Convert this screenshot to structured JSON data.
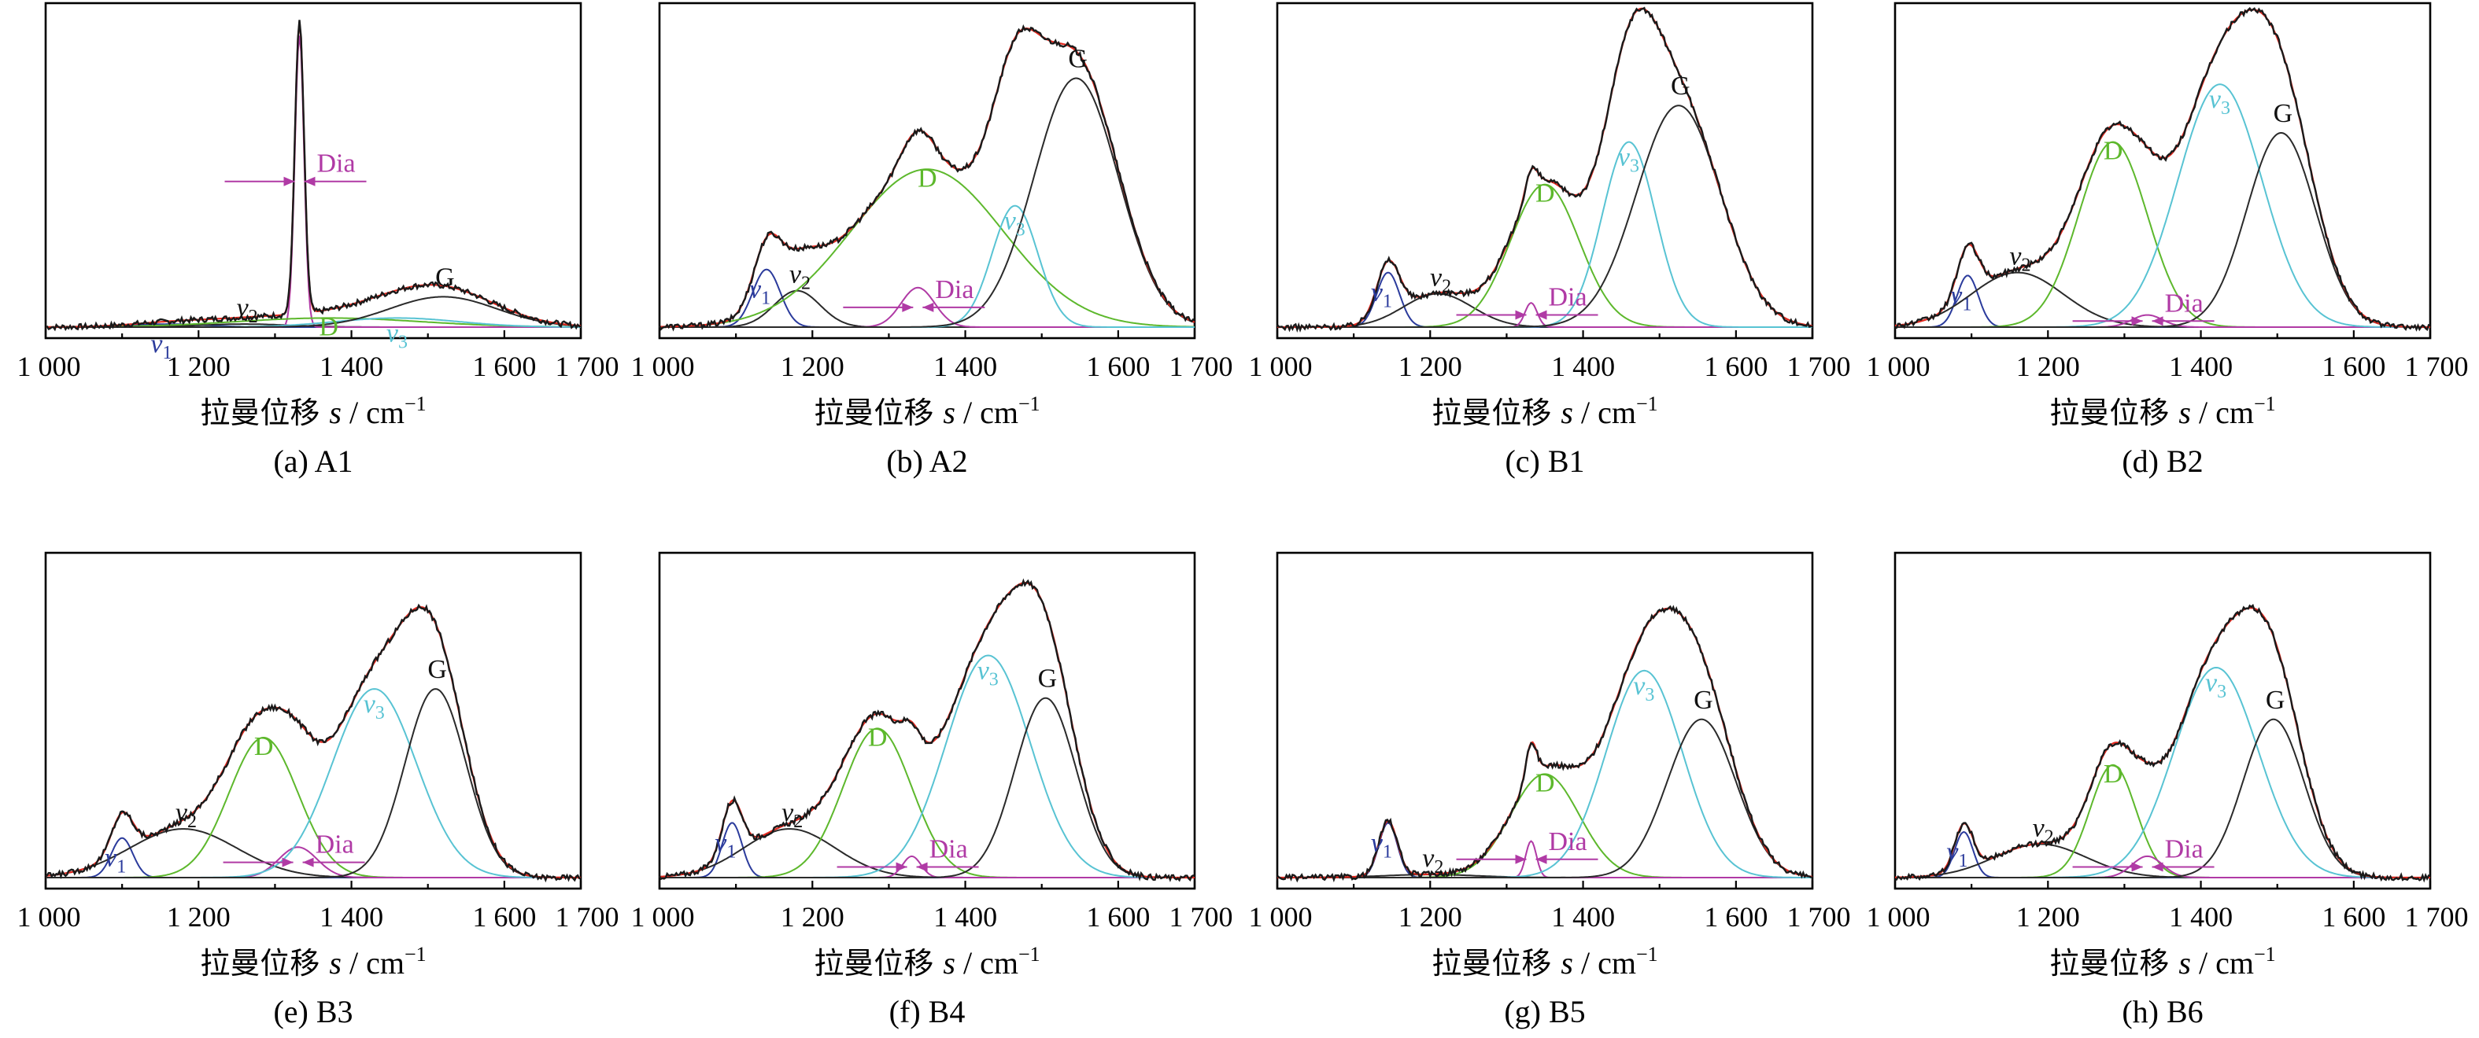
{
  "figure": {
    "xlabel_text": "拉曼位移",
    "xlabel_var": "s",
    "xlabel_unit": " / cm",
    "xlabel_exp": "−1",
    "xticks": [
      1000,
      1200,
      1400,
      1600,
      1700
    ],
    "xtick_labels": [
      "1 000",
      "1 200",
      "1 400",
      "1 600",
      "1 700"
    ],
    "xlim": [
      1000,
      1700
    ],
    "colors": {
      "raw": "#1a1a1a",
      "fit": "#e3281e",
      "v1": "#2b3b9c",
      "v2": "#2a2a2a",
      "D": "#5db82c",
      "Dia": "#b03aa5",
      "v3": "#58c3d3",
      "G": "#2a2a2a",
      "baseline": "#3a3aa8"
    }
  },
  "chart_data": [
    {
      "type": "line",
      "panel": "A1",
      "caption": "(a) A1",
      "xlim": [
        1000,
        1700
      ],
      "bands": [
        {
          "name": "v1",
          "center": 1160,
          "height": 0.01,
          "width": 50
        },
        {
          "name": "v2",
          "center": 1260,
          "height": 0.01,
          "width": 60
        },
        {
          "name": "Dia",
          "center": 1332,
          "height": 0.96,
          "width": 6
        },
        {
          "name": "D",
          "center": 1370,
          "height": 0.03,
          "width": 120
        },
        {
          "name": "v3",
          "center": 1460,
          "height": 0.03,
          "width": 80
        },
        {
          "name": "G",
          "center": 1520,
          "height": 0.1,
          "width": 70
        }
      ],
      "labels": {
        "Dia": "Dia",
        "G": "G",
        "D": "D",
        "v1": "v",
        "v1_sub": "1",
        "v2": "v",
        "v2_sub": "2",
        "v3": "v",
        "v3_sub": "3"
      }
    },
    {
      "type": "line",
      "panel": "A2",
      "caption": "(b) A2",
      "xlim": [
        1000,
        1700
      ],
      "bands": [
        {
          "name": "v1",
          "center": 1140,
          "height": 0.19,
          "width": 18
        },
        {
          "name": "v2",
          "center": 1180,
          "height": 0.12,
          "width": 30
        },
        {
          "name": "D",
          "center": 1350,
          "height": 0.52,
          "width": 100
        },
        {
          "name": "Dia",
          "center": 1338,
          "height": 0.13,
          "width": 22
        },
        {
          "name": "v3",
          "center": 1465,
          "height": 0.4,
          "width": 30
        },
        {
          "name": "G",
          "center": 1545,
          "height": 0.82,
          "width": 55
        }
      ],
      "labels": {
        "Dia": "Dia",
        "G": "G",
        "D": "D",
        "v1": "v",
        "v1_sub": "1",
        "v2": "v",
        "v2_sub": "2",
        "v3": "v",
        "v3_sub": "3"
      }
    },
    {
      "type": "line",
      "panel": "B1",
      "caption": "(c) B1",
      "xlim": [
        1000,
        1700
      ],
      "bands": [
        {
          "name": "v1",
          "center": 1145,
          "height": 0.18,
          "width": 15
        },
        {
          "name": "v2",
          "center": 1210,
          "height": 0.11,
          "width": 45
        },
        {
          "name": "D",
          "center": 1350,
          "height": 0.47,
          "width": 45
        },
        {
          "name": "Dia",
          "center": 1332,
          "height": 0.08,
          "width": 8
        },
        {
          "name": "v3",
          "center": 1460,
          "height": 0.61,
          "width": 35
        },
        {
          "name": "G",
          "center": 1525,
          "height": 0.73,
          "width": 55
        }
      ],
      "labels": {
        "Dia": "Dia",
        "G": "G",
        "D": "D",
        "v1": "v",
        "v1_sub": "1",
        "v2": "v",
        "v2_sub": "2",
        "v3": "v",
        "v3_sub": "3"
      }
    },
    {
      "type": "line",
      "panel": "B2",
      "caption": "(d) B2",
      "xlim": [
        1000,
        1700
      ],
      "bands": [
        {
          "name": "v1",
          "center": 1095,
          "height": 0.17,
          "width": 14
        },
        {
          "name": "v2",
          "center": 1160,
          "height": 0.18,
          "width": 60
        },
        {
          "name": "D",
          "center": 1285,
          "height": 0.61,
          "width": 45
        },
        {
          "name": "Dia",
          "center": 1330,
          "height": 0.04,
          "width": 20
        },
        {
          "name": "v3",
          "center": 1425,
          "height": 0.8,
          "width": 55
        },
        {
          "name": "G",
          "center": 1505,
          "height": 0.64,
          "width": 45
        }
      ],
      "labels": {
        "Dia": "Dia",
        "G": "G",
        "D": "D",
        "v1": "v",
        "v1_sub": "1",
        "v2": "v",
        "v2_sub": "2",
        "v3": "v",
        "v3_sub": "3"
      }
    },
    {
      "type": "line",
      "panel": "B3",
      "caption": "(e) B3",
      "xlim": [
        1000,
        1700
      ],
      "bands": [
        {
          "name": "v1",
          "center": 1100,
          "height": 0.13,
          "width": 14
        },
        {
          "name": "v2",
          "center": 1180,
          "height": 0.16,
          "width": 70
        },
        {
          "name": "D",
          "center": 1285,
          "height": 0.46,
          "width": 45
        },
        {
          "name": "Dia",
          "center": 1330,
          "height": 0.1,
          "width": 25
        },
        {
          "name": "v3",
          "center": 1430,
          "height": 0.62,
          "width": 55
        },
        {
          "name": "G",
          "center": 1510,
          "height": 0.62,
          "width": 40
        }
      ],
      "labels": {
        "Dia": "Dia",
        "G": "G",
        "D": "D",
        "v1": "v",
        "v1_sub": "1",
        "v2": "v",
        "v2_sub": "2",
        "v3": "v",
        "v3_sub": "3"
      }
    },
    {
      "type": "line",
      "panel": "B4",
      "caption": "(f) B4",
      "xlim": [
        1000,
        1700
      ],
      "bands": [
        {
          "name": "v1",
          "center": 1095,
          "height": 0.18,
          "width": 13
        },
        {
          "name": "v2",
          "center": 1170,
          "height": 0.16,
          "width": 60
        },
        {
          "name": "D",
          "center": 1285,
          "height": 0.49,
          "width": 45
        },
        {
          "name": "Dia",
          "center": 1330,
          "height": 0.07,
          "width": 12
        },
        {
          "name": "v3",
          "center": 1430,
          "height": 0.73,
          "width": 55
        },
        {
          "name": "G",
          "center": 1505,
          "height": 0.59,
          "width": 40
        }
      ],
      "labels": {
        "Dia": "Dia",
        "G": "G",
        "D": "D",
        "v1": "v",
        "v1_sub": "1",
        "v2": "v",
        "v2_sub": "2",
        "v3": "v",
        "v3_sub": "3"
      }
    },
    {
      "type": "line",
      "panel": "B5",
      "caption": "(g) B5",
      "xlim": [
        1000,
        1700
      ],
      "bands": [
        {
          "name": "v1",
          "center": 1145,
          "height": 0.18,
          "width": 12
        },
        {
          "name": "v2",
          "center": 1200,
          "height": 0.01,
          "width": 60
        },
        {
          "name": "D",
          "center": 1350,
          "height": 0.34,
          "width": 45
        },
        {
          "name": "Dia",
          "center": 1332,
          "height": 0.12,
          "width": 7
        },
        {
          "name": "v3",
          "center": 1480,
          "height": 0.68,
          "width": 50
        },
        {
          "name": "G",
          "center": 1555,
          "height": 0.52,
          "width": 45
        }
      ],
      "labels": {
        "Dia": "Dia",
        "G": "G",
        "D": "D",
        "v1": "v",
        "v1_sub": "1",
        "v2": "v",
        "v2_sub": "2",
        "v3": "v",
        "v3_sub": "3"
      }
    },
    {
      "type": "line",
      "panel": "B6",
      "caption": "(h) B6",
      "xlim": [
        1000,
        1700
      ],
      "bands": [
        {
          "name": "v1",
          "center": 1090,
          "height": 0.15,
          "width": 12
        },
        {
          "name": "v2",
          "center": 1190,
          "height": 0.11,
          "width": 60
        },
        {
          "name": "D",
          "center": 1285,
          "height": 0.37,
          "width": 30
        },
        {
          "name": "Dia",
          "center": 1330,
          "height": 0.07,
          "width": 20
        },
        {
          "name": "v3",
          "center": 1420,
          "height": 0.69,
          "width": 55
        },
        {
          "name": "G",
          "center": 1495,
          "height": 0.52,
          "width": 40
        }
      ],
      "labels": {
        "Dia": "Dia",
        "G": "G",
        "D": "D",
        "v1": "v",
        "v1_sub": "1",
        "v2": "v",
        "v2_sub": "2",
        "v3": "v",
        "v3_sub": "3"
      }
    }
  ]
}
